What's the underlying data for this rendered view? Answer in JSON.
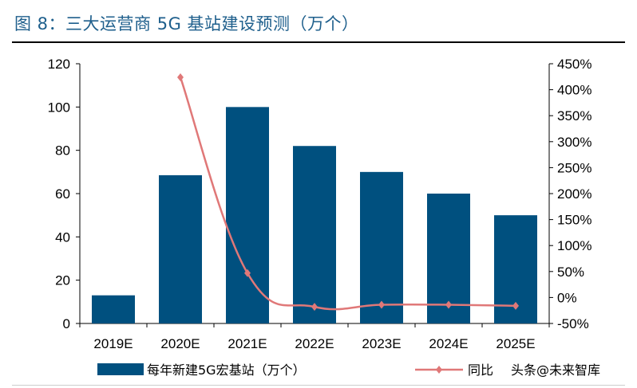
{
  "title": "图 8：三大运营商 5G 基站建设预测（万个）",
  "watermark": "头条@未来智库",
  "chart_data": {
    "type": "bar+line",
    "categories": [
      "2019E",
      "2020E",
      "2021E",
      "2022E",
      "2023E",
      "2024E",
      "2025E"
    ],
    "series": [
      {
        "name": "每年新建5G宏基站（万个）",
        "type": "bar",
        "axis": "left",
        "color": "#00507f",
        "values": [
          13,
          68.5,
          100,
          82,
          70,
          60,
          50
        ]
      },
      {
        "name": "同比",
        "type": "line",
        "axis": "right",
        "color": "#e07878",
        "values": [
          null,
          424,
          47,
          -18,
          -14,
          -14,
          -16
        ]
      }
    ],
    "left_axis": {
      "ylim": [
        0,
        120
      ],
      "ticks": [
        "0",
        "20",
        "40",
        "60",
        "80",
        "100",
        "120"
      ]
    },
    "right_axis": {
      "ylim": [
        -50,
        450
      ],
      "unit": "%",
      "ticks": [
        "-50%",
        "0%",
        "50%",
        "100%",
        "150%",
        "200%",
        "250%",
        "300%",
        "350%",
        "400%",
        "450%"
      ]
    },
    "grid": false,
    "legend_position": "bottom"
  }
}
